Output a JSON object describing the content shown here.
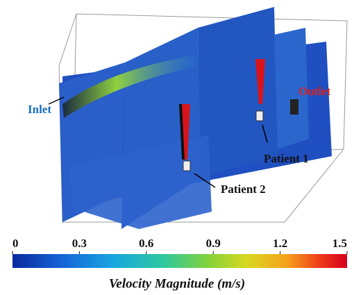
{
  "labels": {
    "inlet": "Inlet",
    "outlet": "Outlet",
    "patient_1": "Patient 1",
    "patient_2": "Patient 2"
  },
  "colorbar": {
    "title": "Velocity Magnitude (m/s)",
    "range": [
      0,
      1.5
    ],
    "ticks": [
      0,
      0.3,
      0.6,
      0.9,
      1.2,
      1.5
    ]
  }
}
